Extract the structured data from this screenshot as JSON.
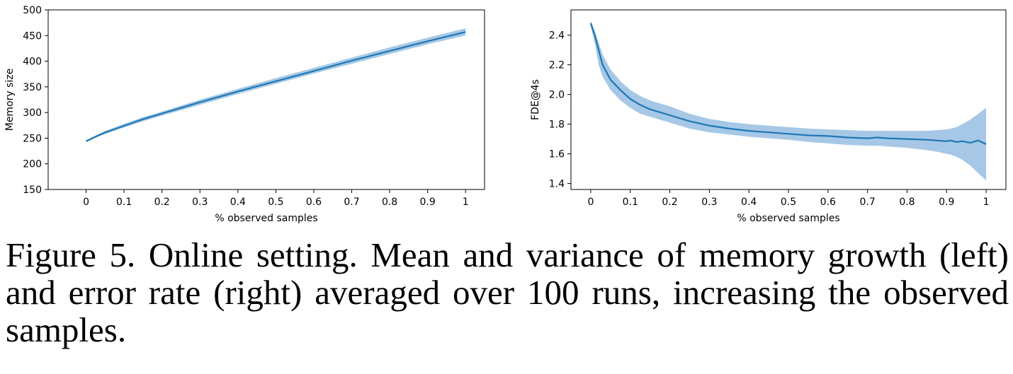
{
  "chart_data": [
    {
      "type": "line",
      "title": "",
      "xlabel": "% observed samples",
      "ylabel": "Memory size",
      "xlim": [
        -0.1,
        1.05
      ],
      "ylim": [
        150,
        500
      ],
      "xticks": [
        "0",
        "0.1",
        "0.2",
        "0.3",
        "0.4",
        "0.5",
        "0.6",
        "0.7",
        "0.8",
        "0.9",
        "1"
      ],
      "yticks": [
        "150",
        "200",
        "250",
        "300",
        "350",
        "400",
        "450",
        "500"
      ],
      "grid": false,
      "color": "#1f77b4",
      "band_color": "#a6c8e6",
      "series": [
        {
          "x": [
            0,
            0.025,
            0.05,
            0.1,
            0.15,
            0.2,
            0.3,
            0.4,
            0.5,
            0.6,
            0.7,
            0.8,
            0.9,
            1.0
          ],
          "mean": [
            244,
            253,
            261,
            274,
            287,
            298,
            320,
            341,
            361,
            381,
            401,
            420,
            439,
            457
          ],
          "lower": [
            242,
            251,
            258,
            271,
            283,
            294,
            315,
            336,
            356,
            376,
            395,
            414,
            433,
            450
          ],
          "upper": [
            246,
            255,
            264,
            278,
            291,
            302,
            325,
            346,
            367,
            387,
            407,
            427,
            446,
            464
          ]
        }
      ]
    },
    {
      "type": "line",
      "title": "",
      "xlabel": "% observed samples",
      "ylabel": "FDE@4s",
      "xlim": [
        -0.05,
        1.05
      ],
      "ylim": [
        1.36,
        2.57
      ],
      "xticks": [
        "0",
        "0.1",
        "0.2",
        "0.3",
        "0.4",
        "0.5",
        "0.6",
        "0.7",
        "0.8",
        "0.9",
        "1"
      ],
      "yticks": [
        "1.4",
        "1.6",
        "1.8",
        "2.0",
        "2.2",
        "2.4"
      ],
      "grid": false,
      "color": "#1f77b4",
      "band_color": "#a6c8e6",
      "series": [
        {
          "x": [
            0,
            0.01,
            0.02,
            0.03,
            0.05,
            0.075,
            0.1,
            0.125,
            0.15,
            0.2,
            0.25,
            0.3,
            0.35,
            0.4,
            0.45,
            0.5,
            0.55,
            0.6,
            0.65,
            0.7,
            0.725,
            0.75,
            0.8,
            0.85,
            0.875,
            0.9,
            0.91,
            0.925,
            0.94,
            0.96,
            0.98,
            1.0
          ],
          "mean": [
            2.48,
            2.4,
            2.3,
            2.2,
            2.1,
            2.03,
            1.97,
            1.93,
            1.9,
            1.86,
            1.82,
            1.79,
            1.77,
            1.755,
            1.745,
            1.735,
            1.725,
            1.72,
            1.71,
            1.705,
            1.71,
            1.705,
            1.7,
            1.695,
            1.69,
            1.685,
            1.69,
            1.68,
            1.685,
            1.675,
            1.69,
            1.665
          ],
          "lower": [
            2.46,
            2.35,
            2.2,
            2.12,
            2.03,
            1.96,
            1.91,
            1.87,
            1.85,
            1.81,
            1.77,
            1.745,
            1.73,
            1.715,
            1.705,
            1.695,
            1.68,
            1.67,
            1.66,
            1.655,
            1.655,
            1.65,
            1.64,
            1.625,
            1.615,
            1.6,
            1.595,
            1.58,
            1.56,
            1.52,
            1.47,
            1.42
          ],
          "upper": [
            2.5,
            2.43,
            2.35,
            2.27,
            2.17,
            2.09,
            2.03,
            1.99,
            1.96,
            1.92,
            1.87,
            1.835,
            1.815,
            1.8,
            1.79,
            1.78,
            1.77,
            1.765,
            1.76,
            1.755,
            1.755,
            1.755,
            1.755,
            1.755,
            1.76,
            1.765,
            1.77,
            1.78,
            1.8,
            1.83,
            1.87,
            1.91
          ]
        }
      ]
    }
  ],
  "caption": "Figure 5. Online setting.  Mean and variance of memory growth (left) and error rate (right) averaged over 100 runs, increasing the observed samples."
}
